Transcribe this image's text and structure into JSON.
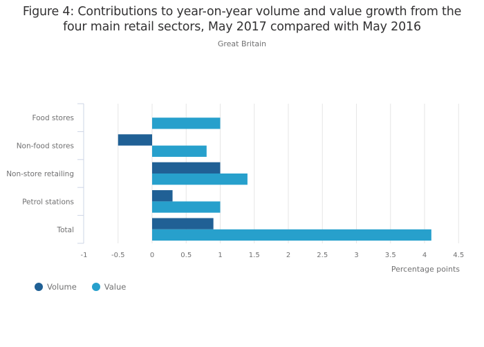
{
  "header": {
    "title_line1": "Figure 4: Contributions to year-on-year volume and value growth from the",
    "title_line2": "four main retail sectors, May 2017 compared with May 2016",
    "subtitle": "Great Britain"
  },
  "colors": {
    "volume": "#206095",
    "value": "#27a0cc",
    "grid": "#e6e6e6",
    "axis": "#ccd5e6"
  },
  "chart_data": {
    "type": "bar",
    "orientation": "horizontal",
    "title": "Figure 4: Contributions to year-on-year volume and value growth from the four main retail sectors, May 2017 compared with May 2016",
    "subtitle": "Great Britain",
    "categories": [
      "Food stores",
      "Non-food stores",
      "Non-store retailing",
      "Petrol stations",
      "Total"
    ],
    "series": [
      {
        "name": "Volume",
        "values": [
          0.0,
          -0.5,
          1.0,
          0.3,
          0.9
        ]
      },
      {
        "name": "Value",
        "values": [
          1.0,
          0.8,
          1.4,
          1.0,
          4.1
        ]
      }
    ],
    "xlabel": "Percentage points",
    "ylabel": "",
    "xlim": [
      -1,
      4.5
    ],
    "xticks": [
      -1,
      -0.5,
      0,
      0.5,
      1,
      1.5,
      2,
      2.5,
      3,
      3.5,
      4,
      4.5
    ],
    "xtick_labels": [
      "-1",
      "-0.5",
      "0",
      "0.5",
      "1",
      "1.5",
      "2",
      "2.5",
      "3",
      "3.5",
      "4",
      "4.5"
    ],
    "grid": true,
    "legend": {
      "position": "bottom-left",
      "entries": [
        "Volume",
        "Value"
      ]
    }
  }
}
